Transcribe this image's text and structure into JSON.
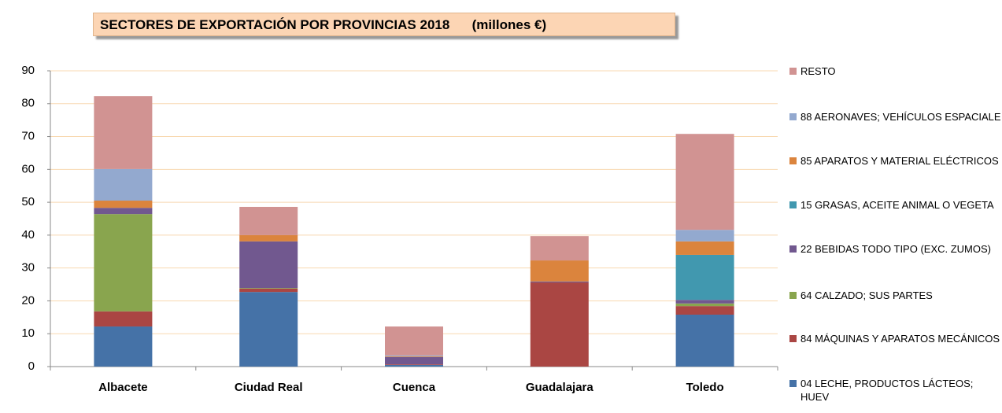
{
  "chart_data": {
    "type": "stacked_bar",
    "title": "SECTORES DE EXPORTACIÓN POR PROVINCIAS 2018      (millones €)",
    "categories": [
      "Albacete",
      "Ciudad Real",
      "Cuenca",
      "Guadalajara",
      "Toledo"
    ],
    "series": [
      {
        "name": "04 LECHE, PRODUCTOS LÁCTEOS; HUEV",
        "color": "#4572a7",
        "values": [
          12.2,
          22.7,
          0.5,
          0,
          15.8
        ]
      },
      {
        "name": "84 MÁQUINAS Y APARATOS MECÁNICOS",
        "color": "#aa4643",
        "values": [
          4.6,
          1.0,
          0.2,
          25.6,
          2.6
        ]
      },
      {
        "name": "64 CALZADO; SUS PARTES",
        "color": "#89a54e",
        "values": [
          29.6,
          0.2,
          0,
          0,
          0.8
        ]
      },
      {
        "name": "22 BEBIDAS TODO TIPO (EXC. ZUMOS)",
        "color": "#71588f",
        "values": [
          1.9,
          14.2,
          2.2,
          0.3,
          1.1
        ]
      },
      {
        "name": "15 GRASAS, ACEITE ANIMAL O VEGETA",
        "color": "#4198af",
        "values": [
          0,
          0,
          0,
          0,
          13.7
        ]
      },
      {
        "name": "85 APARATOS Y MATERIAL ELÉCTRICOS",
        "color": "#db843d",
        "values": [
          2.2,
          1.9,
          0.2,
          6.4,
          4.1
        ]
      },
      {
        "name": "88 AERONAVES; VEHÍCULOS ESPACIALE",
        "color": "#93a9cf",
        "values": [
          9.6,
          0,
          0.3,
          0,
          3.5
        ]
      },
      {
        "name": "RESTO",
        "color": "#d19392",
        "values": [
          22.2,
          8.6,
          8.8,
          7.4,
          29.2
        ]
      }
    ],
    "ylim": [
      0,
      90
    ],
    "yticks": [
      0,
      10,
      20,
      30,
      40,
      50,
      60,
      70,
      80,
      90
    ],
    "grid": true,
    "legend": "right"
  }
}
